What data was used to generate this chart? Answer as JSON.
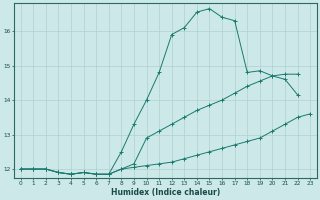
{
  "xlabel": "Humidex (Indice chaleur)",
  "background_color": "#cce8e8",
  "grid_color": "#b0d0d0",
  "line_color": "#1a7a6e",
  "xlim": [
    -0.5,
    23.5
  ],
  "ylim": [
    11.75,
    16.8
  ],
  "xticks": [
    0,
    1,
    2,
    3,
    4,
    5,
    6,
    7,
    8,
    9,
    10,
    11,
    12,
    13,
    14,
    15,
    16,
    17,
    18,
    19,
    20,
    21,
    22,
    23
  ],
  "yticks": [
    12,
    13,
    14,
    15,
    16
  ],
  "line1_x": [
    0,
    1,
    2,
    3,
    4,
    5,
    6,
    7,
    8,
    9,
    10,
    11,
    12,
    13,
    14,
    15,
    16,
    17,
    18,
    19,
    20,
    21,
    22,
    23
  ],
  "line1_y": [
    12.0,
    12.0,
    12.0,
    11.9,
    11.85,
    11.9,
    11.85,
    11.85,
    12.0,
    12.05,
    12.1,
    12.15,
    12.2,
    12.3,
    12.4,
    12.5,
    12.6,
    12.7,
    12.8,
    12.9,
    13.1,
    13.3,
    13.5,
    13.6
  ],
  "line2_x": [
    0,
    1,
    2,
    3,
    4,
    5,
    6,
    7,
    8,
    9,
    10,
    11,
    12,
    13,
    14,
    15,
    16,
    17,
    18,
    19,
    20,
    21,
    22
  ],
  "line2_y": [
    12.0,
    12.0,
    12.0,
    11.9,
    11.85,
    11.9,
    11.85,
    11.85,
    12.5,
    13.3,
    14.0,
    14.8,
    15.9,
    16.1,
    16.55,
    16.65,
    16.4,
    16.3,
    14.8,
    14.85,
    14.7,
    14.6,
    14.15
  ],
  "line3_x": [
    0,
    1,
    2,
    3,
    4,
    5,
    6,
    7,
    8,
    9,
    10,
    11,
    12,
    13,
    14,
    15,
    16,
    17,
    18,
    19,
    20,
    21,
    22
  ],
  "line3_y": [
    12.0,
    12.0,
    12.0,
    11.9,
    11.85,
    11.9,
    11.85,
    11.85,
    12.0,
    12.15,
    12.9,
    13.1,
    13.3,
    13.5,
    13.7,
    13.85,
    14.0,
    14.2,
    14.4,
    14.55,
    14.7,
    14.75,
    14.75
  ]
}
